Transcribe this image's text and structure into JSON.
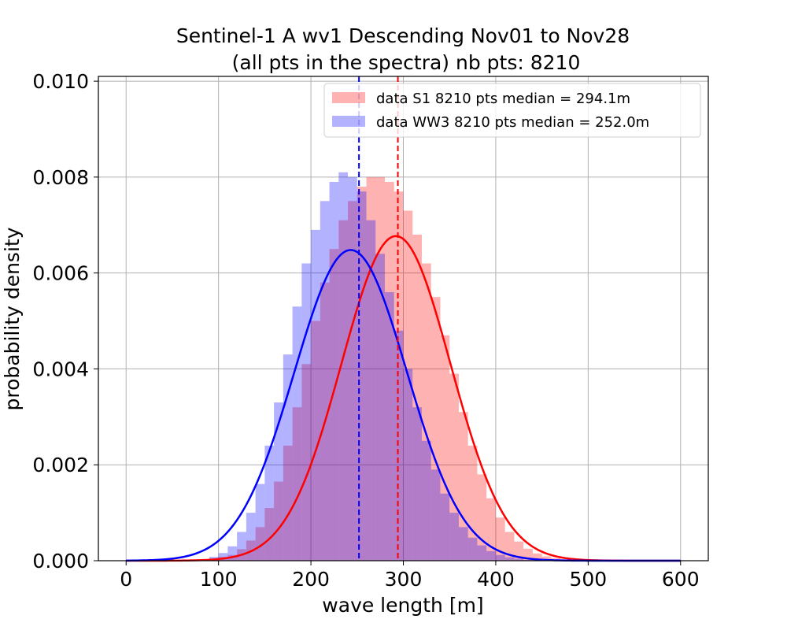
{
  "chart_data": {
    "type": "histogram",
    "title_line1": "Sentinel-1 A wv1 Descending Nov01 to Nov28",
    "title_line2": "(all pts in the spectra) nb pts: 8210",
    "xlabel": "wave length [m]",
    "ylabel": "probability density",
    "xlim": [
      -30,
      630
    ],
    "ylim": [
      0,
      0.0101
    ],
    "x_ticks": [
      0,
      100,
      200,
      300,
      400,
      500,
      600
    ],
    "x_tick_labels": [
      "0",
      "100",
      "200",
      "300",
      "400",
      "500",
      "600"
    ],
    "y_ticks": [
      0,
      0.002,
      0.004,
      0.006,
      0.008,
      0.01
    ],
    "y_tick_labels": [
      "0.000",
      "0.002",
      "0.004",
      "0.006",
      "0.008",
      "0.010"
    ],
    "grid": true,
    "legend_position": "top-right",
    "series": [
      {
        "name": "data S1 8210 pts median = 294.1m",
        "color": "#ff0000",
        "fill_alpha": 0.3,
        "median": 294.1,
        "fit": {
          "kind": "gaussian",
          "mean": 292,
          "std": 59,
          "peak": 0.00677
        },
        "histogram": {
          "bin_start": 0,
          "bin_width": 10,
          "density": [
            0,
            0,
            0,
            0,
            0,
            0,
            0,
            0,
            2e-05,
            4e-05,
            8e-05,
            0.00012,
            0.00024,
            0.00042,
            0.0007,
            0.0011,
            0.00165,
            0.0024,
            0.0032,
            0.0041,
            0.005,
            0.0058,
            0.0065,
            0.0071,
            0.0075,
            0.0078,
            0.008,
            0.008,
            0.0079,
            0.0077,
            0.0073,
            0.0068,
            0.0062,
            0.0055,
            0.0047,
            0.0039,
            0.0031,
            0.0024,
            0.0018,
            0.0013,
            0.0009,
            0.0006,
            0.0004,
            0.00025,
            0.00015,
            9e-05,
            5e-05,
            3e-05,
            2e-05,
            1e-05,
            5e-06,
            0,
            0,
            0,
            0,
            0,
            0,
            0,
            0,
            0
          ]
        }
      },
      {
        "name": "data WW3 8210 pts median = 252.0m",
        "color": "#0000ff",
        "fill_alpha": 0.3,
        "median": 252.0,
        "fit": {
          "kind": "gaussian",
          "mean": 243,
          "std": 61,
          "peak": 0.00648
        },
        "histogram": {
          "bin_start": 0,
          "bin_width": 10,
          "density": [
            0,
            0,
            0,
            0,
            0,
            0,
            0,
            0,
            3e-05,
            8e-05,
            0.00016,
            0.0003,
            0.0006,
            0.001,
            0.0016,
            0.0024,
            0.0033,
            0.0043,
            0.0053,
            0.0062,
            0.0069,
            0.0075,
            0.0079,
            0.0081,
            0.008,
            0.0077,
            0.0071,
            0.0064,
            0.0056,
            0.0048,
            0.004,
            0.0032,
            0.0025,
            0.0019,
            0.0014,
            0.001,
            0.0007,
            0.00048,
            0.00032,
            0.0002,
            0.00012,
            7e-05,
            4e-05,
            2e-05,
            1e-05,
            5e-06,
            0,
            0,
            0,
            0,
            0,
            0,
            0,
            0,
            0,
            0,
            0,
            0,
            0,
            0
          ]
        }
      }
    ]
  }
}
